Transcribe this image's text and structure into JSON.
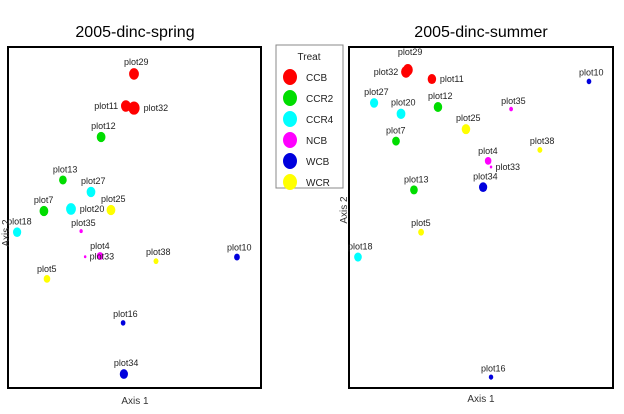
{
  "legend": {
    "title": "Treat",
    "entries": [
      {
        "name": "CCB",
        "color": "#ff0000"
      },
      {
        "name": "CCR2",
        "color": "#00dd00"
      },
      {
        "name": "CCR4",
        "color": "#00ffff"
      },
      {
        "name": "NCB",
        "color": "#ff00ff"
      },
      {
        "name": "WCB",
        "color": "#0000dd"
      },
      {
        "name": "WCR",
        "color": "#ffff00"
      }
    ]
  },
  "chart_data": [
    {
      "type": "scatter",
      "title": "2005-dinc-spring",
      "xlabel": "Axis 1",
      "ylabel": "Axis 2",
      "xlim": [
        0,
        100
      ],
      "ylim": [
        0,
        100
      ],
      "grid": false,
      "points": [
        {
          "label": "plot29",
          "group": "CCB",
          "x": 49.8,
          "y": 92.1,
          "size": 3
        },
        {
          "label": "plot11",
          "group": "CCB",
          "x": 46.6,
          "y": 82.7,
          "size": 3
        },
        {
          "label": "plot32",
          "group": "CCB",
          "x": 49.8,
          "y": 82.1,
          "size": 3.5
        },
        {
          "label": "plot12",
          "group": "CCR2",
          "x": 36.8,
          "y": 73.6,
          "size": 2.6
        },
        {
          "label": "plot13",
          "group": "CCR2",
          "x": 21.7,
          "y": 61.0,
          "size": 2.2
        },
        {
          "label": "plot27",
          "group": "CCR4",
          "x": 32.8,
          "y": 57.5,
          "size": 2.6
        },
        {
          "label": "plot20",
          "group": "CCR4",
          "x": 24.9,
          "y": 52.5,
          "size": 3
        },
        {
          "label": "plot7",
          "group": "CCR2",
          "x": 14.2,
          "y": 51.9,
          "size": 2.6
        },
        {
          "label": "plot25",
          "group": "WCR",
          "x": 40.7,
          "y": 52.2,
          "size": 2.6
        },
        {
          "label": "plot18",
          "group": "CCR4",
          "x": 3.6,
          "y": 45.7,
          "size": 2.4
        },
        {
          "label": "plot35",
          "group": "NCB",
          "x": 28.9,
          "y": 46.0,
          "size": 0.6
        },
        {
          "label": "plot4",
          "group": "NCB",
          "x": 36.4,
          "y": 38.7,
          "size": 1.8
        },
        {
          "label": "plot33",
          "group": "NCB",
          "x": 30.5,
          "y": 38.5,
          "size": 0.3
        },
        {
          "label": "plot38",
          "group": "WCR",
          "x": 58.5,
          "y": 37.2,
          "size": 1.2
        },
        {
          "label": "plot10",
          "group": "WCB",
          "x": 90.5,
          "y": 38.4,
          "size": 1.5
        },
        {
          "label": "plot5",
          "group": "WCR",
          "x": 15.4,
          "y": 32.0,
          "size": 1.8
        },
        {
          "label": "plot16",
          "group": "WCB",
          "x": 45.5,
          "y": 19.1,
          "size": 1.1
        },
        {
          "label": "plot34",
          "group": "WCB",
          "x": 45.8,
          "y": 4.1,
          "size": 2.4
        }
      ]
    },
    {
      "type": "scatter",
      "title": "2005-dinc-summer",
      "xlabel": "Axis 1",
      "ylabel": "Axis 2",
      "xlim": [
        0,
        100
      ],
      "ylim": [
        0,
        100
      ],
      "grid": false,
      "points": [
        {
          "label": "plot29",
          "group": "CCB",
          "x": 22.3,
          "y": 93.3,
          "size": 3
        },
        {
          "label": "plot32",
          "group": "CCB",
          "x": 21.6,
          "y": 92.7,
          "size": 3
        },
        {
          "label": "plot11",
          "group": "CCB",
          "x": 31.4,
          "y": 90.6,
          "size": 2.5
        },
        {
          "label": "plot27",
          "group": "CCR4",
          "x": 9.5,
          "y": 83.6,
          "size": 2.4
        },
        {
          "label": "plot20",
          "group": "CCR4",
          "x": 19.7,
          "y": 80.4,
          "size": 2.6
        },
        {
          "label": "plot12",
          "group": "CCR2",
          "x": 33.7,
          "y": 82.4,
          "size": 2.5
        },
        {
          "label": "plot35",
          "group": "NCB",
          "x": 61.4,
          "y": 81.8,
          "size": 0.8
        },
        {
          "label": "plot25",
          "group": "WCR",
          "x": 44.3,
          "y": 75.9,
          "size": 2.5
        },
        {
          "label": "plot7",
          "group": "CCR2",
          "x": 17.8,
          "y": 72.4,
          "size": 2.2
        },
        {
          "label": "plot38",
          "group": "WCR",
          "x": 72.3,
          "y": 69.8,
          "size": 1.2
        },
        {
          "label": "plot4",
          "group": "NCB",
          "x": 52.7,
          "y": 66.6,
          "size": 1.8
        },
        {
          "label": "plot33",
          "group": "NCB",
          "x": 53.8,
          "y": 64.8,
          "size": 0.3
        },
        {
          "label": "plot34",
          "group": "WCB",
          "x": 50.8,
          "y": 58.9,
          "size": 2.4
        },
        {
          "label": "plot13",
          "group": "CCR2",
          "x": 24.6,
          "y": 58.1,
          "size": 2.2
        },
        {
          "label": "plot5",
          "group": "WCR",
          "x": 27.3,
          "y": 45.7,
          "size": 1.5
        },
        {
          "label": "plot18",
          "group": "CCR4",
          "x": 3.4,
          "y": 38.4,
          "size": 2.2
        },
        {
          "label": "plot10",
          "group": "WCB",
          "x": 90.9,
          "y": 89.9,
          "size": 1.1
        },
        {
          "label": "plot16",
          "group": "WCB",
          "x": 53.8,
          "y": 3.2,
          "size": 1
        }
      ]
    }
  ]
}
